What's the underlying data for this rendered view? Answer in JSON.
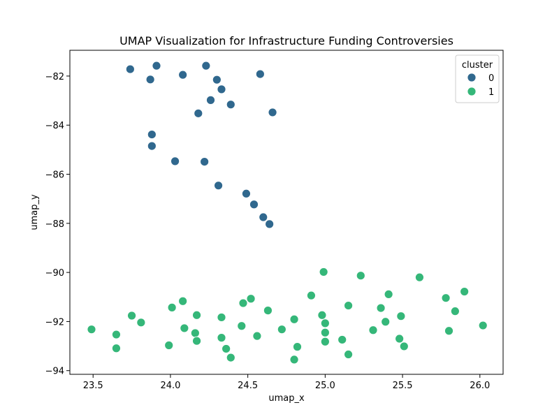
{
  "chart_data": {
    "type": "scatter",
    "title": "UMAP Visualization for Infrastructure Funding Controversies",
    "xlabel": "umap_x",
    "ylabel": "umap_y",
    "xlim": [
      23.35,
      26.15
    ],
    "ylim": [
      -94.15,
      -80.95
    ],
    "xticks": [
      23.5,
      24.0,
      24.5,
      25.0,
      25.5,
      26.0
    ],
    "xtick_labels": [
      "23.5",
      "24.0",
      "24.5",
      "25.0",
      "25.5",
      "26.0"
    ],
    "yticks": [
      -82,
      -84,
      -86,
      -88,
      -90,
      -92,
      -94
    ],
    "ytick_labels": [
      "−82",
      "−84",
      "−86",
      "−88",
      "−90",
      "−92",
      "−94"
    ],
    "grid": false,
    "legend": {
      "title": "cluster",
      "position": "top-right"
    },
    "series": [
      {
        "name": "0",
        "color": "#30688e",
        "points": [
          [
            23.74,
            -81.72
          ],
          [
            23.91,
            -81.58
          ],
          [
            23.87,
            -82.14
          ],
          [
            24.08,
            -81.95
          ],
          [
            24.23,
            -81.58
          ],
          [
            24.3,
            -82.15
          ],
          [
            24.33,
            -82.54
          ],
          [
            24.26,
            -82.98
          ],
          [
            24.39,
            -83.16
          ],
          [
            24.58,
            -81.92
          ],
          [
            24.18,
            -83.52
          ],
          [
            24.66,
            -83.48
          ],
          [
            23.88,
            -84.38
          ],
          [
            23.88,
            -84.85
          ],
          [
            24.03,
            -85.47
          ],
          [
            24.22,
            -85.49
          ],
          [
            24.31,
            -86.46
          ],
          [
            24.49,
            -86.79
          ],
          [
            24.54,
            -87.23
          ],
          [
            24.6,
            -87.75
          ],
          [
            24.64,
            -88.03
          ]
        ]
      },
      {
        "name": "1",
        "color": "#35b779",
        "points": [
          [
            24.99,
            -89.98
          ],
          [
            25.23,
            -90.13
          ],
          [
            25.61,
            -90.2
          ],
          [
            25.41,
            -90.89
          ],
          [
            25.9,
            -90.78
          ],
          [
            24.91,
            -90.94
          ],
          [
            24.52,
            -91.07
          ],
          [
            24.08,
            -91.17
          ],
          [
            24.47,
            -91.25
          ],
          [
            25.78,
            -91.04
          ],
          [
            24.01,
            -91.43
          ],
          [
            25.15,
            -91.35
          ],
          [
            25.36,
            -91.45
          ],
          [
            25.84,
            -91.58
          ],
          [
            24.63,
            -91.55
          ],
          [
            23.75,
            -91.76
          ],
          [
            24.17,
            -91.74
          ],
          [
            24.33,
            -91.83
          ],
          [
            24.98,
            -91.74
          ],
          [
            25.49,
            -91.78
          ],
          [
            23.81,
            -92.04
          ],
          [
            24.8,
            -91.91
          ],
          [
            25.0,
            -92.07
          ],
          [
            25.39,
            -92.01
          ],
          [
            26.02,
            -92.16
          ],
          [
            23.49,
            -92.32
          ],
          [
            24.09,
            -92.27
          ],
          [
            24.46,
            -92.18
          ],
          [
            24.72,
            -92.32
          ],
          [
            25.0,
            -92.45
          ],
          [
            25.31,
            -92.35
          ],
          [
            25.8,
            -92.38
          ],
          [
            23.65,
            -92.53
          ],
          [
            24.16,
            -92.47
          ],
          [
            24.56,
            -92.59
          ],
          [
            25.11,
            -92.74
          ],
          [
            25.48,
            -92.7
          ],
          [
            24.17,
            -92.79
          ],
          [
            24.33,
            -92.66
          ],
          [
            25.0,
            -92.82
          ],
          [
            23.99,
            -92.97
          ],
          [
            24.82,
            -93.03
          ],
          [
            25.51,
            -93.01
          ],
          [
            23.65,
            -93.09
          ],
          [
            24.36,
            -93.11
          ],
          [
            24.39,
            -93.47
          ],
          [
            25.15,
            -93.34
          ],
          [
            24.8,
            -93.55
          ]
        ]
      }
    ]
  }
}
